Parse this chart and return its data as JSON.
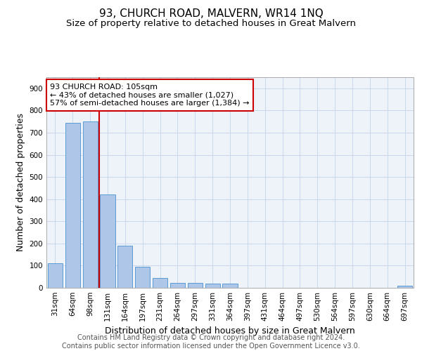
{
  "title": "93, CHURCH ROAD, MALVERN, WR14 1NQ",
  "subtitle": "Size of property relative to detached houses in Great Malvern",
  "xlabel": "Distribution of detached houses by size in Great Malvern",
  "ylabel": "Number of detached properties",
  "bar_labels": [
    "31sqm",
    "64sqm",
    "98sqm",
    "131sqm",
    "164sqm",
    "197sqm",
    "231sqm",
    "264sqm",
    "297sqm",
    "331sqm",
    "364sqm",
    "397sqm",
    "431sqm",
    "464sqm",
    "497sqm",
    "530sqm",
    "564sqm",
    "597sqm",
    "630sqm",
    "664sqm",
    "697sqm"
  ],
  "bar_values": [
    110,
    745,
    750,
    420,
    190,
    95,
    43,
    22,
    22,
    20,
    18,
    0,
    0,
    0,
    0,
    0,
    0,
    0,
    0,
    0,
    8
  ],
  "bar_color": "#aec6e8",
  "bar_edge_color": "#5b9bd5",
  "grid_color": "#c8d8ec",
  "bg_color": "#eef2f9",
  "property_vline_x": 2.5,
  "annotation_line1": "93 CHURCH ROAD: 105sqm",
  "annotation_line2": "← 43% of detached houses are smaller (1,027)",
  "annotation_line3": "57% of semi-detached houses are larger (1,384) →",
  "annotation_box_facecolor": "#ffffff",
  "annotation_box_edgecolor": "#cc0000",
  "vline_color": "#cc0000",
  "footer_line1": "Contains HM Land Registry data © Crown copyright and database right 2024.",
  "footer_line2": "Contains public sector information licensed under the Open Government Licence v3.0.",
  "ylim": [
    0,
    950
  ],
  "yticks": [
    0,
    100,
    200,
    300,
    400,
    500,
    600,
    700,
    800,
    900
  ],
  "title_fontsize": 11,
  "subtitle_fontsize": 9.5,
  "ylabel_fontsize": 9,
  "xlabel_fontsize": 9,
  "tick_fontsize": 7.5,
  "annotation_fontsize": 8,
  "footer_fontsize": 7
}
